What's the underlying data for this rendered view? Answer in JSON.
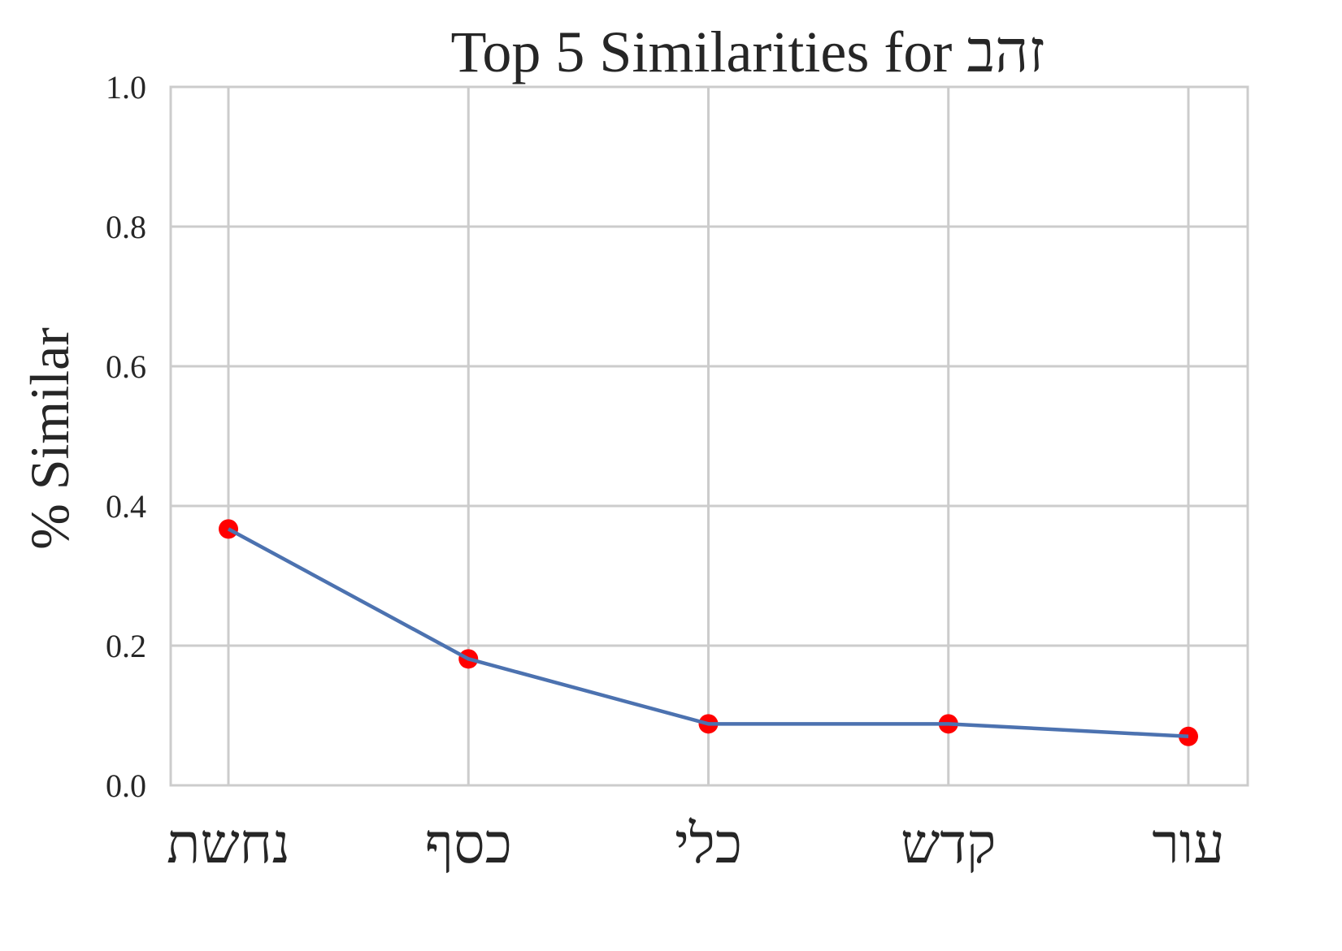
{
  "chart_data": {
    "type": "line",
    "title": "Top 5 Similarities for זהב",
    "xlabel": "",
    "ylabel": "% Similar",
    "categories": [
      "נחשת",
      "כסף",
      "כלי",
      "קדש",
      "עור"
    ],
    "values": [
      0.367,
      0.181,
      0.088,
      0.088,
      0.07
    ],
    "ylim": [
      0,
      1
    ],
    "yticks": [
      "0.0",
      "0.2",
      "0.4",
      "0.6",
      "0.8",
      "1.0"
    ],
    "grid": true,
    "line_color": "#4C72B0",
    "marker_color": "#FF0000",
    "grid_color": "#CCCCCC"
  }
}
